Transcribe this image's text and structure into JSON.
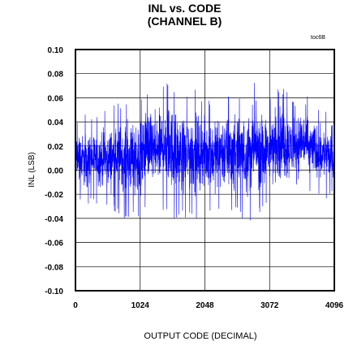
{
  "chart_data": {
    "type": "line",
    "title_lines": [
      "INL vs. CODE",
      "(CHANNEL B)"
    ],
    "figure_tag": "toc6B",
    "xlabel": "OUTPUT CODE (DECIMAL)",
    "ylabel": "INL (LSB)",
    "xlim": [
      0,
      4096
    ],
    "ylim": [
      -0.1,
      0.1
    ],
    "x_ticks": [
      0,
      1024,
      2048,
      3072,
      4096
    ],
    "x_tick_labels": [
      "0",
      "1024",
      "2048",
      "3072",
      "4096"
    ],
    "y_ticks": [
      0.1,
      0.08,
      0.06,
      0.04,
      0.02,
      0.0,
      -0.02,
      -0.04,
      -0.06,
      -0.08,
      -0.1
    ],
    "y_tick_labels": [
      "0.10",
      "0.08",
      "0.06",
      "0.04",
      "0.02",
      "0.00",
      "-0.02",
      "-0.04",
      "-0.06",
      "-0.08",
      "-0.10"
    ],
    "grid": true,
    "series": [
      {
        "color": "#0000ff",
        "x": [
          0,
          128,
          256,
          384,
          512,
          640,
          768,
          896,
          1024,
          1152,
          1280,
          1408,
          1536,
          1664,
          1792,
          1920,
          2048,
          2176,
          2304,
          2432,
          2560,
          2688,
          2816,
          2944,
          3072,
          3200,
          3328,
          3456,
          3584,
          3712,
          3840,
          3968,
          4095
        ],
        "y_max": [
          0.045,
          0.046,
          0.047,
          0.048,
          0.05,
          0.058,
          0.057,
          0.06,
          0.064,
          0.072,
          0.066,
          0.08,
          0.076,
          0.063,
          0.07,
          0.066,
          0.062,
          0.058,
          0.07,
          0.067,
          0.064,
          0.071,
          0.075,
          0.066,
          0.062,
          0.075,
          0.068,
          0.06,
          0.071,
          0.058,
          0.052,
          0.05,
          0.035
        ],
        "y_min": [
          -0.022,
          -0.03,
          -0.027,
          -0.03,
          -0.032,
          -0.035,
          -0.04,
          -0.038,
          -0.04,
          -0.032,
          -0.037,
          -0.036,
          -0.041,
          -0.038,
          -0.04,
          -0.04,
          -0.034,
          -0.035,
          -0.037,
          -0.04,
          -0.035,
          -0.046,
          -0.04,
          -0.034,
          -0.03,
          -0.031,
          -0.027,
          -0.025,
          -0.021,
          -0.02,
          -0.022,
          -0.024,
          -0.015
        ]
      }
    ]
  }
}
